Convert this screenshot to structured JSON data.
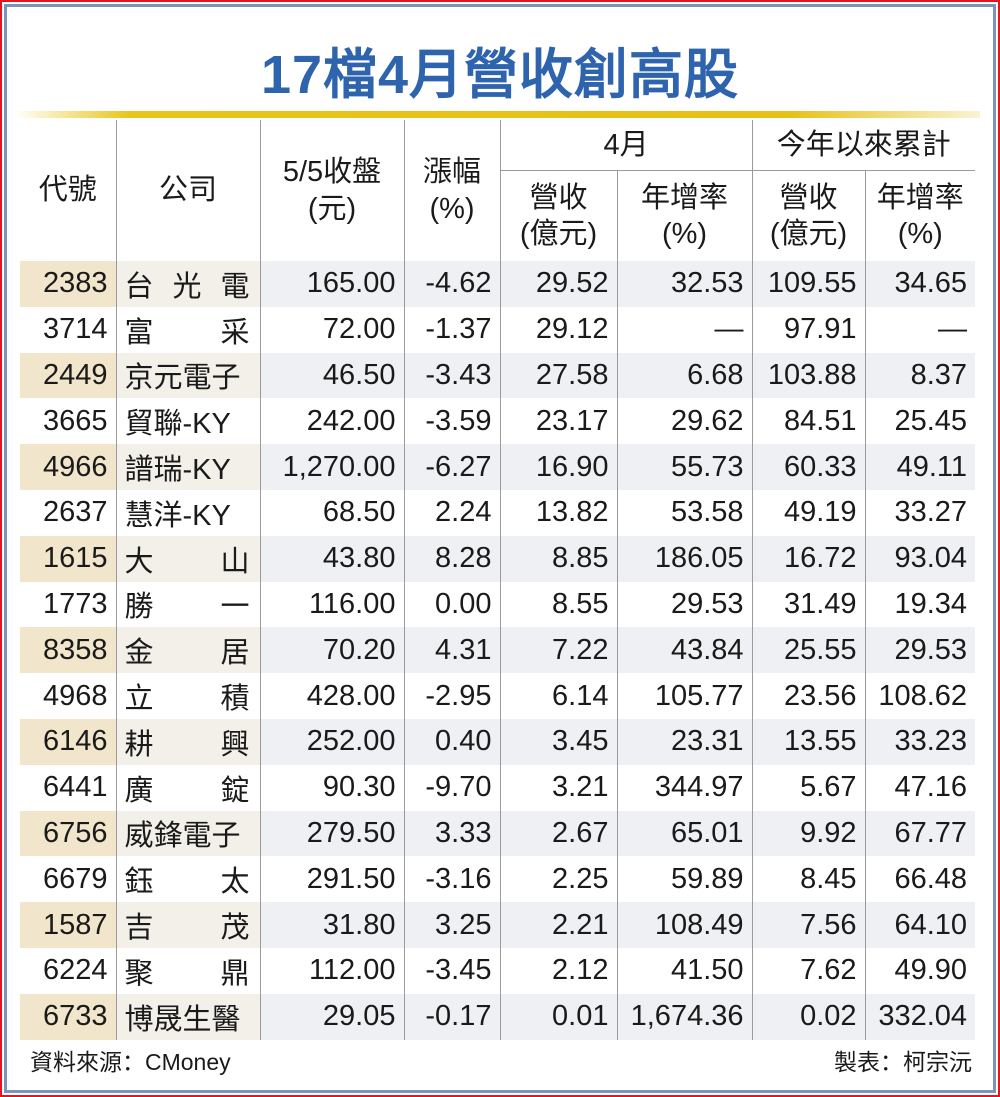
{
  "title": "17檔4月營收創高股",
  "headers": {
    "code": "代號",
    "company": "公司",
    "close_line1": "5/5收盤",
    "close_line2": "(元)",
    "change_line1": "漲幅",
    "change_line2": "(%)",
    "april_group": "4月",
    "ytd_group": "今年以來累計",
    "rev_line1": "營收",
    "rev_line2": "(億元)",
    "yoy_line1": "年增率",
    "yoy_line2": "(%)"
  },
  "rows": [
    {
      "code": "2383",
      "company": "台光電",
      "close": "165.00",
      "change": "-4.62",
      "apr_rev": "29.52",
      "apr_yoy": "32.53",
      "ytd_rev": "109.55",
      "ytd_yoy": "34.65"
    },
    {
      "code": "3714",
      "company": "富采",
      "close": "72.00",
      "change": "-1.37",
      "apr_rev": "29.12",
      "apr_yoy": "—",
      "ytd_rev": "97.91",
      "ytd_yoy": "—"
    },
    {
      "code": "2449",
      "company": "京元電子",
      "close": "46.50",
      "change": "-3.43",
      "apr_rev": "27.58",
      "apr_yoy": "6.68",
      "ytd_rev": "103.88",
      "ytd_yoy": "8.37"
    },
    {
      "code": "3665",
      "company": "貿聯-KY",
      "close": "242.00",
      "change": "-3.59",
      "apr_rev": "23.17",
      "apr_yoy": "29.62",
      "ytd_rev": "84.51",
      "ytd_yoy": "25.45"
    },
    {
      "code": "4966",
      "company": "譜瑞-KY",
      "close": "1,270.00",
      "change": "-6.27",
      "apr_rev": "16.90",
      "apr_yoy": "55.73",
      "ytd_rev": "60.33",
      "ytd_yoy": "49.11"
    },
    {
      "code": "2637",
      "company": "慧洋-KY",
      "close": "68.50",
      "change": "2.24",
      "apr_rev": "13.82",
      "apr_yoy": "53.58",
      "ytd_rev": "49.19",
      "ytd_yoy": "33.27"
    },
    {
      "code": "1615",
      "company": "大山",
      "close": "43.80",
      "change": "8.28",
      "apr_rev": "8.85",
      "apr_yoy": "186.05",
      "ytd_rev": "16.72",
      "ytd_yoy": "93.04"
    },
    {
      "code": "1773",
      "company": "勝一",
      "close": "116.00",
      "change": "0.00",
      "apr_rev": "8.55",
      "apr_yoy": "29.53",
      "ytd_rev": "31.49",
      "ytd_yoy": "19.34"
    },
    {
      "code": "8358",
      "company": "金居",
      "close": "70.20",
      "change": "4.31",
      "apr_rev": "7.22",
      "apr_yoy": "43.84",
      "ytd_rev": "25.55",
      "ytd_yoy": "29.53"
    },
    {
      "code": "4968",
      "company": "立積",
      "close": "428.00",
      "change": "-2.95",
      "apr_rev": "6.14",
      "apr_yoy": "105.77",
      "ytd_rev": "23.56",
      "ytd_yoy": "108.62"
    },
    {
      "code": "6146",
      "company": "耕興",
      "close": "252.00",
      "change": "0.40",
      "apr_rev": "3.45",
      "apr_yoy": "23.31",
      "ytd_rev": "13.55",
      "ytd_yoy": "33.23"
    },
    {
      "code": "6441",
      "company": "廣錠",
      "close": "90.30",
      "change": "-9.70",
      "apr_rev": "3.21",
      "apr_yoy": "344.97",
      "ytd_rev": "5.67",
      "ytd_yoy": "47.16"
    },
    {
      "code": "6756",
      "company": "威鋒電子",
      "close": "279.50",
      "change": "3.33",
      "apr_rev": "2.67",
      "apr_yoy": "65.01",
      "ytd_rev": "9.92",
      "ytd_yoy": "67.77"
    },
    {
      "code": "6679",
      "company": "鈺太",
      "close": "291.50",
      "change": "-3.16",
      "apr_rev": "2.25",
      "apr_yoy": "59.89",
      "ytd_rev": "8.45",
      "ytd_yoy": "66.48"
    },
    {
      "code": "1587",
      "company": "吉茂",
      "close": "31.80",
      "change": "3.25",
      "apr_rev": "2.21",
      "apr_yoy": "108.49",
      "ytd_rev": "7.56",
      "ytd_yoy": "64.10"
    },
    {
      "code": "6224",
      "company": "聚鼎",
      "close": "112.00",
      "change": "-3.45",
      "apr_rev": "2.12",
      "apr_yoy": "41.50",
      "ytd_rev": "7.62",
      "ytd_yoy": "49.90"
    },
    {
      "code": "6733",
      "company": "博晟生醫",
      "close": "29.05",
      "change": "-0.17",
      "apr_rev": "0.01",
      "apr_yoy": "1,674.36",
      "ytd_rev": "0.02",
      "ytd_yoy": "332.04"
    }
  ],
  "footer": {
    "source": "資料來源：CMoney",
    "credit": "製表：柯宗沅"
  },
  "colors": {
    "title": "#2e63ad",
    "gold_rule": "#e9c41a",
    "outer_border": "#e8141c",
    "inner_border": "#7d94b8",
    "shade_code": "#f1e6cb",
    "shade_row": "#eef0f4"
  },
  "chart_data": {
    "type": "table",
    "title": "17檔4月營收創高股",
    "columns": [
      "代號",
      "公司",
      "5/5收盤(元)",
      "漲幅(%)",
      "4月營收(億元)",
      "4月年增率(%)",
      "今年以來累計營收(億元)",
      "今年以來累計年增率(%)"
    ],
    "rows": [
      [
        "2383",
        "台光電",
        165.0,
        -4.62,
        29.52,
        32.53,
        109.55,
        34.65
      ],
      [
        "3714",
        "富采",
        72.0,
        -1.37,
        29.12,
        null,
        97.91,
        null
      ],
      [
        "2449",
        "京元電子",
        46.5,
        -3.43,
        27.58,
        6.68,
        103.88,
        8.37
      ],
      [
        "3665",
        "貿聯-KY",
        242.0,
        -3.59,
        23.17,
        29.62,
        84.51,
        25.45
      ],
      [
        "4966",
        "譜瑞-KY",
        1270.0,
        -6.27,
        16.9,
        55.73,
        60.33,
        49.11
      ],
      [
        "2637",
        "慧洋-KY",
        68.5,
        2.24,
        13.82,
        53.58,
        49.19,
        33.27
      ],
      [
        "1615",
        "大山",
        43.8,
        8.28,
        8.85,
        186.05,
        16.72,
        93.04
      ],
      [
        "1773",
        "勝一",
        116.0,
        0.0,
        8.55,
        29.53,
        31.49,
        19.34
      ],
      [
        "8358",
        "金居",
        70.2,
        4.31,
        7.22,
        43.84,
        25.55,
        29.53
      ],
      [
        "4968",
        "立積",
        428.0,
        -2.95,
        6.14,
        105.77,
        23.56,
        108.62
      ],
      [
        "6146",
        "耕興",
        252.0,
        0.4,
        3.45,
        23.31,
        13.55,
        33.23
      ],
      [
        "6441",
        "廣錠",
        90.3,
        -9.7,
        3.21,
        344.97,
        5.67,
        47.16
      ],
      [
        "6756",
        "威鋒電子",
        279.5,
        3.33,
        2.67,
        65.01,
        9.92,
        67.77
      ],
      [
        "6679",
        "鈺太",
        291.5,
        -3.16,
        2.25,
        59.89,
        8.45,
        66.48
      ],
      [
        "1587",
        "吉茂",
        31.8,
        3.25,
        2.21,
        108.49,
        7.56,
        64.1
      ],
      [
        "6224",
        "聚鼎",
        112.0,
        -3.45,
        2.12,
        41.5,
        7.62,
        49.9
      ],
      [
        "6733",
        "博晟生醫",
        29.05,
        -0.17,
        0.01,
        1674.36,
        0.02,
        332.04
      ]
    ],
    "source": "資料來源：CMoney",
    "credit": "製表：柯宗沅"
  }
}
